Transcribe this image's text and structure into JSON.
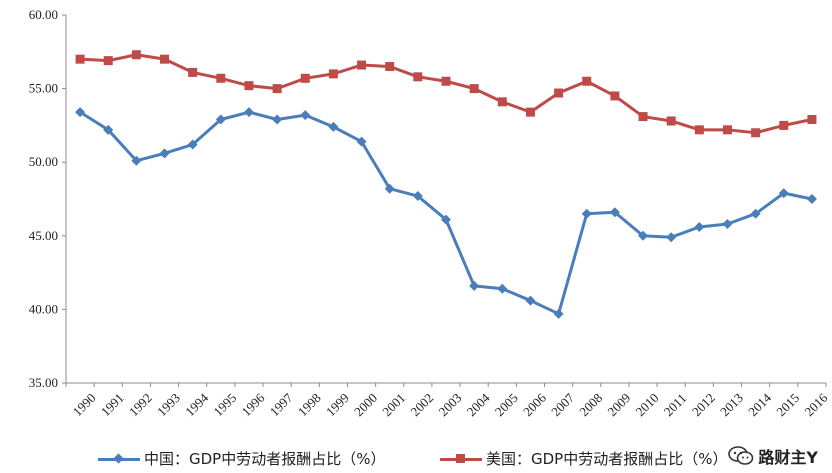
{
  "chart_data": {
    "type": "line",
    "title": "",
    "xlabel": "",
    "ylabel": "",
    "ylim": [
      35,
      60
    ],
    "yticks": [
      "35.00",
      "40.00",
      "45.00",
      "50.00",
      "55.00",
      "60.00"
    ],
    "grid": false,
    "legend_position": "bottom",
    "categories": [
      "1990",
      "1991",
      "1992",
      "1993",
      "1994",
      "1995",
      "1996",
      "1997",
      "1998",
      "1999",
      "2000",
      "2001",
      "2002",
      "2003",
      "2004",
      "2005",
      "2006",
      "2007",
      "2008",
      "2009",
      "2010",
      "2011",
      "2012",
      "2013",
      "2014",
      "2015",
      "2016"
    ],
    "series": [
      {
        "name": "中国：GDP中劳动者报酬占比（%）",
        "color": "#4a7ebb",
        "marker": "diamond",
        "values": [
          53.4,
          52.2,
          50.1,
          50.6,
          51.2,
          52.9,
          53.4,
          52.9,
          53.2,
          52.4,
          51.4,
          48.2,
          47.7,
          46.1,
          41.6,
          41.4,
          40.6,
          39.7,
          46.5,
          46.6,
          45.0,
          44.9,
          45.6,
          45.8,
          46.5,
          47.9,
          47.5
        ]
      },
      {
        "name": "美国：GDP中劳动者报酬占比（%）",
        "color": "#be4b48",
        "marker": "square",
        "values": [
          57.0,
          56.9,
          57.3,
          57.0,
          56.1,
          55.7,
          55.2,
          55.0,
          55.7,
          56.0,
          56.6,
          56.5,
          55.8,
          55.5,
          55.0,
          54.1,
          53.4,
          54.7,
          55.5,
          54.5,
          53.1,
          52.8,
          52.2,
          52.2,
          52.0,
          52.5,
          52.9
        ]
      }
    ]
  },
  "watermark": {
    "text": "路财主Y",
    "icon": "wechat-icon"
  }
}
